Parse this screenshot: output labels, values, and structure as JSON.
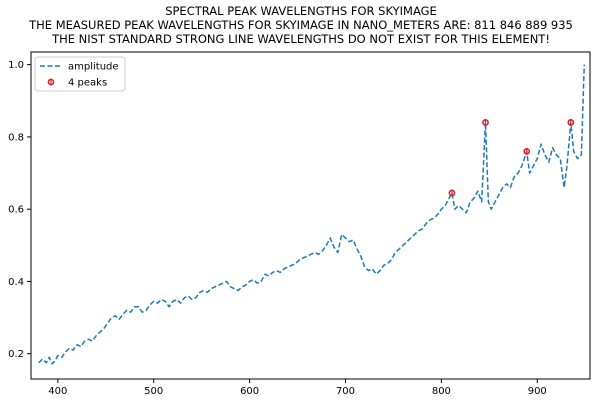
{
  "chart_data": {
    "type": "line",
    "title_lines": [
      "SPECTRAL PEAK WAVELENGTHS FOR SKYIMAGE",
      "THE MEASURED PEAK WAVELENGTHS FOR SKYIMAGE IN NANO_METERS ARE: 811 846 889 935",
      "THE NIST STANDARD STRONG LINE WAVELENGTHS DO NOT EXIST FOR THIS ELEMENT!"
    ],
    "xlabel": "",
    "ylabel": "",
    "xlim": [
      372,
      955
    ],
    "ylim": [
      0.13,
      1.035
    ],
    "x_ticks": [
      "400",
      "500",
      "600",
      "700",
      "800",
      "900"
    ],
    "y_ticks": [
      "0.2",
      "0.4",
      "0.6",
      "0.8",
      "1.0"
    ],
    "grid": false,
    "legend": {
      "placement": "top-left",
      "entries": [
        {
          "label": "amplitude",
          "style": "dashed-line"
        },
        {
          "label": "4 peaks",
          "style": "marker"
        }
      ]
    },
    "series": [
      {
        "name": "amplitude",
        "color": "#1f77b4",
        "style": "dashed",
        "points": [
          [
            380,
            0.175
          ],
          [
            384,
            0.185
          ],
          [
            388,
            0.175
          ],
          [
            391,
            0.19
          ],
          [
            394,
            0.172
          ],
          [
            397,
            0.18
          ],
          [
            400,
            0.195
          ],
          [
            404,
            0.19
          ],
          [
            408,
            0.205
          ],
          [
            412,
            0.215
          ],
          [
            416,
            0.21
          ],
          [
            420,
            0.225
          ],
          [
            424,
            0.22
          ],
          [
            428,
            0.235
          ],
          [
            432,
            0.24
          ],
          [
            436,
            0.235
          ],
          [
            440,
            0.25
          ],
          [
            444,
            0.26
          ],
          [
            448,
            0.27
          ],
          [
            452,
            0.285
          ],
          [
            456,
            0.3
          ],
          [
            460,
            0.305
          ],
          [
            464,
            0.295
          ],
          [
            468,
            0.31
          ],
          [
            472,
            0.32
          ],
          [
            476,
            0.315
          ],
          [
            480,
            0.33
          ],
          [
            484,
            0.33
          ],
          [
            488,
            0.315
          ],
          [
            492,
            0.32
          ],
          [
            496,
            0.335
          ],
          [
            500,
            0.345
          ],
          [
            504,
            0.34
          ],
          [
            508,
            0.35
          ],
          [
            512,
            0.345
          ],
          [
            516,
            0.33
          ],
          [
            520,
            0.345
          ],
          [
            524,
            0.35
          ],
          [
            528,
            0.34
          ],
          [
            532,
            0.355
          ],
          [
            536,
            0.36
          ],
          [
            540,
            0.35
          ],
          [
            544,
            0.355
          ],
          [
            548,
            0.37
          ],
          [
            552,
            0.375
          ],
          [
            556,
            0.37
          ],
          [
            560,
            0.38
          ],
          [
            564,
            0.385
          ],
          [
            568,
            0.39
          ],
          [
            572,
            0.395
          ],
          [
            576,
            0.4
          ],
          [
            580,
            0.385
          ],
          [
            584,
            0.38
          ],
          [
            588,
            0.375
          ],
          [
            592,
            0.385
          ],
          [
            596,
            0.39
          ],
          [
            600,
            0.4
          ],
          [
            604,
            0.405
          ],
          [
            608,
            0.395
          ],
          [
            612,
            0.4
          ],
          [
            616,
            0.42
          ],
          [
            620,
            0.415
          ],
          [
            624,
            0.425
          ],
          [
            628,
            0.43
          ],
          [
            632,
            0.425
          ],
          [
            636,
            0.435
          ],
          [
            640,
            0.44
          ],
          [
            644,
            0.445
          ],
          [
            648,
            0.45
          ],
          [
            652,
            0.46
          ],
          [
            656,
            0.465
          ],
          [
            660,
            0.47
          ],
          [
            664,
            0.475
          ],
          [
            668,
            0.48
          ],
          [
            672,
            0.475
          ],
          [
            676,
            0.485
          ],
          [
            680,
            0.5
          ],
          [
            684,
            0.52
          ],
          [
            688,
            0.495
          ],
          [
            692,
            0.48
          ],
          [
            696,
            0.53
          ],
          [
            700,
            0.52
          ],
          [
            704,
            0.51
          ],
          [
            708,
            0.515
          ],
          [
            712,
            0.49
          ],
          [
            716,
            0.47
          ],
          [
            720,
            0.44
          ],
          [
            724,
            0.43
          ],
          [
            728,
            0.435
          ],
          [
            732,
            0.42
          ],
          [
            736,
            0.43
          ],
          [
            740,
            0.445
          ],
          [
            744,
            0.45
          ],
          [
            748,
            0.46
          ],
          [
            752,
            0.48
          ],
          [
            756,
            0.49
          ],
          [
            760,
            0.5
          ],
          [
            764,
            0.51
          ],
          [
            768,
            0.52
          ],
          [
            772,
            0.53
          ],
          [
            776,
            0.54
          ],
          [
            780,
            0.545
          ],
          [
            784,
            0.56
          ],
          [
            788,
            0.57
          ],
          [
            792,
            0.575
          ],
          [
            796,
            0.585
          ],
          [
            800,
            0.6
          ],
          [
            804,
            0.61
          ],
          [
            808,
            0.63
          ],
          [
            811,
            0.645
          ],
          [
            814,
            0.6
          ],
          [
            818,
            0.61
          ],
          [
            822,
            0.6
          ],
          [
            826,
            0.59
          ],
          [
            830,
            0.62
          ],
          [
            834,
            0.63
          ],
          [
            838,
            0.65
          ],
          [
            842,
            0.62
          ],
          [
            846,
            0.84
          ],
          [
            849,
            0.62
          ],
          [
            852,
            0.6
          ],
          [
            856,
            0.62
          ],
          [
            860,
            0.64
          ],
          [
            864,
            0.66
          ],
          [
            868,
            0.67
          ],
          [
            872,
            0.66
          ],
          [
            876,
            0.69
          ],
          [
            880,
            0.7
          ],
          [
            884,
            0.72
          ],
          [
            889,
            0.76
          ],
          [
            892,
            0.7
          ],
          [
            896,
            0.72
          ],
          [
            900,
            0.74
          ],
          [
            904,
            0.78
          ],
          [
            908,
            0.75
          ],
          [
            912,
            0.73
          ],
          [
            916,
            0.77
          ],
          [
            920,
            0.75
          ],
          [
            924,
            0.74
          ],
          [
            928,
            0.66
          ],
          [
            931,
            0.72
          ],
          [
            935,
            0.84
          ],
          [
            938,
            0.76
          ],
          [
            942,
            0.74
          ],
          [
            946,
            0.75
          ],
          [
            949,
            1.0
          ]
        ]
      },
      {
        "name": "4 peaks",
        "color": "#d62728",
        "style": "marker",
        "points": [
          [
            811,
            0.645
          ],
          [
            846,
            0.84
          ],
          [
            889,
            0.76
          ],
          [
            935,
            0.84
          ]
        ]
      }
    ]
  }
}
